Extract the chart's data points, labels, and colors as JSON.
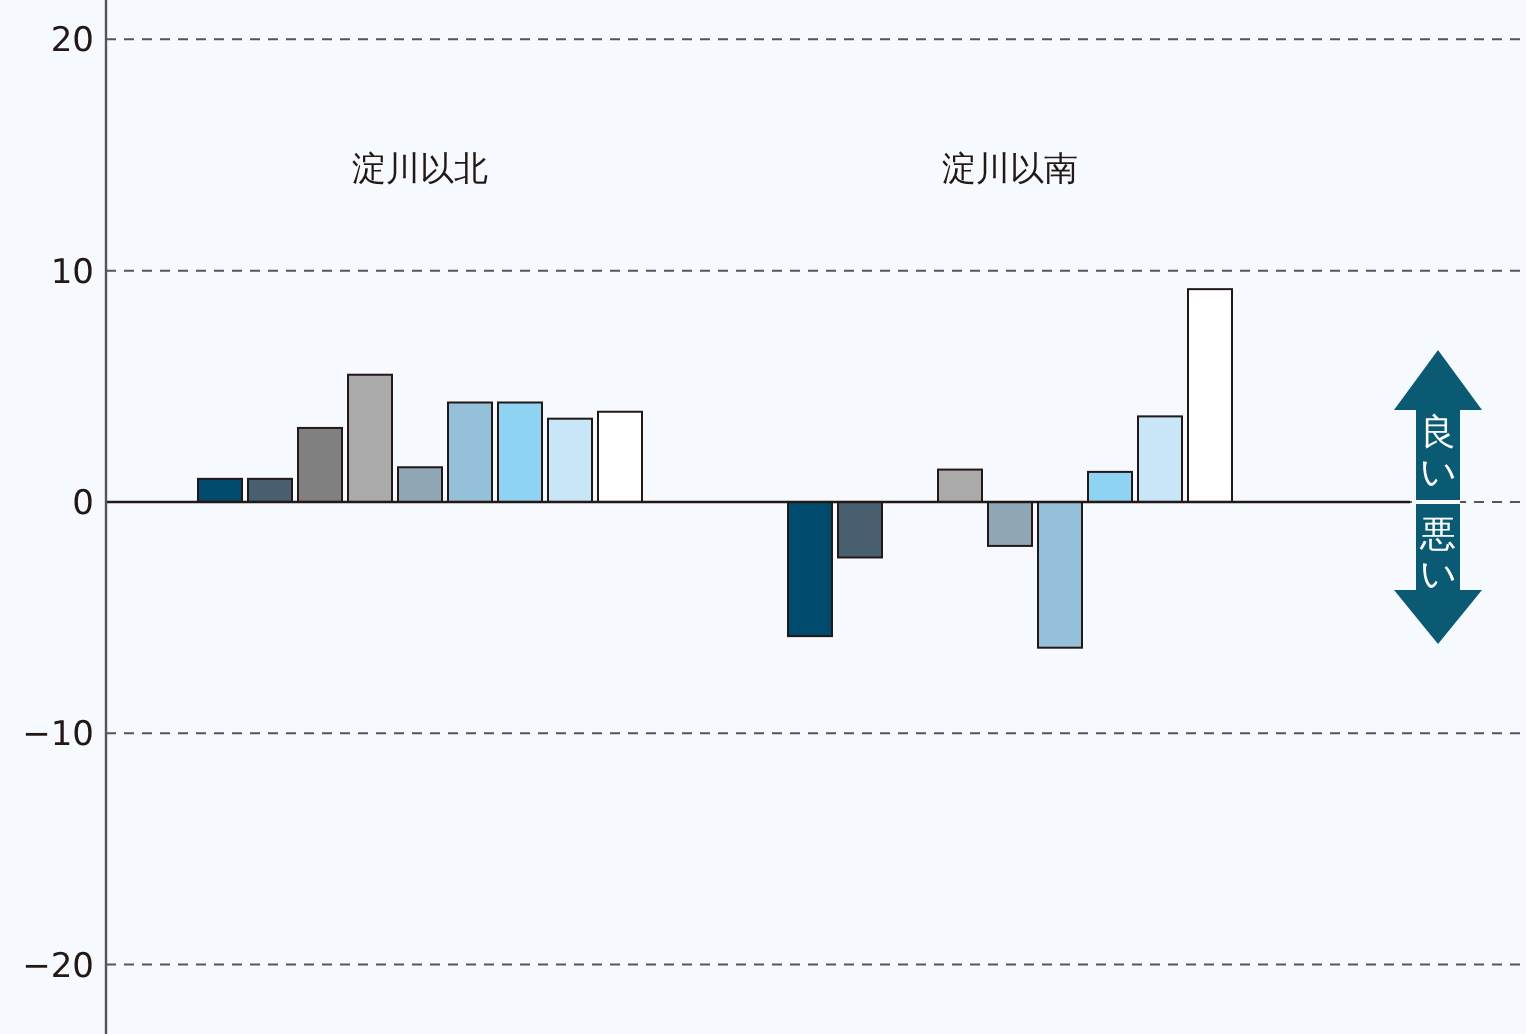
{
  "chart_data": {
    "type": "bar",
    "categories": [
      "淀川以北",
      "淀川以南"
    ],
    "series": [
      {
        "color": "#004a6e",
        "values": [
          1.0,
          -5.8
        ]
      },
      {
        "color": "#475f6e",
        "values": [
          1.0,
          -2.4
        ]
      },
      {
        "color": "#808080",
        "values": [
          3.2,
          null
        ]
      },
      {
        "color": "#aaaaaa",
        "values": [
          5.5,
          1.4
        ]
      },
      {
        "color": "#8fa6b4",
        "values": [
          1.5,
          -1.9
        ]
      },
      {
        "color": "#94c1d9",
        "values": [
          4.3,
          -6.3
        ]
      },
      {
        "color": "#8ed3f2",
        "values": [
          4.3,
          1.3
        ]
      },
      {
        "color": "#c8e6f8",
        "values": [
          3.6,
          3.7
        ]
      },
      {
        "color": "#ffffff",
        "values": [
          3.9,
          9.2
        ]
      }
    ],
    "ylim": [
      -23,
      21.7
    ],
    "yticks": [
      20,
      10,
      0,
      {
        "value": -10,
        "label": "−10"
      },
      {
        "value": -20,
        "label": "−20"
      }
    ],
    "grid": "y",
    "annotations": [
      "良い",
      "悪い"
    ]
  }
}
